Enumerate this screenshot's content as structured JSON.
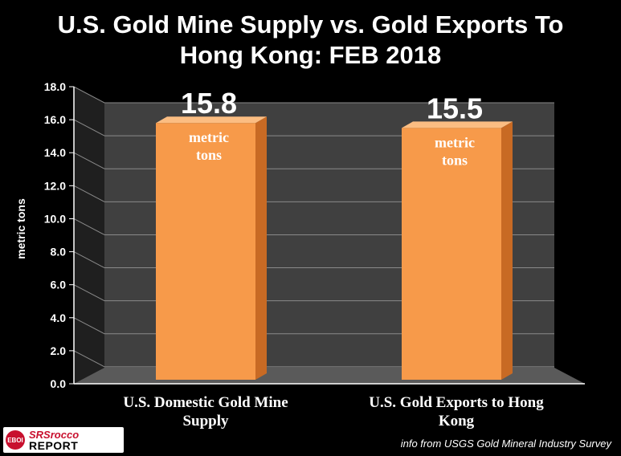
{
  "chart_data": {
    "type": "bar",
    "title": "U.S. Gold Mine Supply vs. Gold Exports To Hong Kong:  FEB 2018",
    "title_lines": [
      "U.S. Gold Mine Supply vs. Gold Exports To",
      "Hong Kong:  FEB 2018"
    ],
    "ylabel": "metric tons",
    "xlabel": "",
    "ylim": [
      0,
      18
    ],
    "yticks": [
      "0.0",
      "2.0",
      "4.0",
      "6.0",
      "8.0",
      "10.0",
      "12.0",
      "14.0",
      "16.0",
      "18.0"
    ],
    "grid": true,
    "categories": [
      "U.S. Domestic Gold Mine Supply",
      "U.S. Gold Exports to Hong Kong"
    ],
    "category_lines": [
      [
        "U.S. Domestic Gold Mine",
        "Supply"
      ],
      [
        "U.S. Gold Exports to Hong",
        "Kong"
      ]
    ],
    "values": [
      15.8,
      15.5
    ],
    "value_labels": [
      "15.8",
      "15.5"
    ],
    "unit_label": [
      "metric",
      "tons"
    ],
    "bar_color": "#f79a4a",
    "bar_side_color": "#c86a24",
    "wall_color": "#404040",
    "floor_color": "#5a5a5a"
  },
  "logo": {
    "badge": "EBOI",
    "line1": "SRSrocco",
    "line2": "REPORT"
  },
  "source": "info from USGS Gold Mineral Industry Survey"
}
